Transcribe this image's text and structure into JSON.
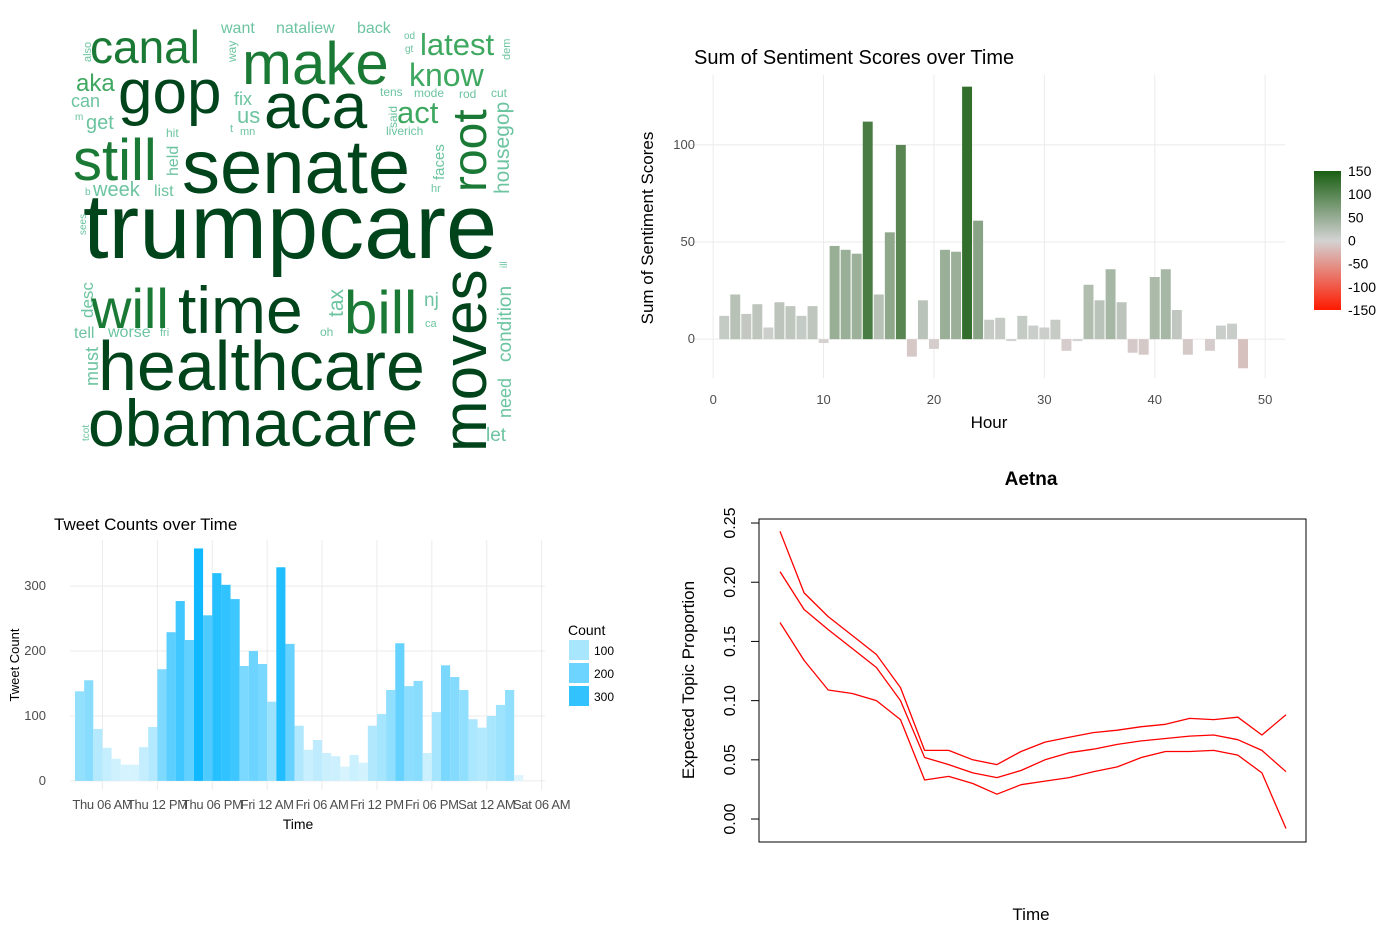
{
  "chart_data": [
    {
      "type": "wordcloud",
      "colors": [
        "#00441b",
        "#1a7a35",
        "#3fa860",
        "#6cc4a0"
      ],
      "words": [
        "trumpcare",
        "senate",
        "healthcare",
        "obamacare",
        "time",
        "make",
        "aca",
        "gop",
        "still",
        "bill",
        "will",
        "moves",
        "root",
        "canal",
        "know",
        "latest",
        "act",
        "aka",
        "housegop",
        "condition",
        "need",
        "us",
        "week",
        "get",
        "tax",
        "desc",
        "must",
        "fix",
        "can",
        "want",
        "nataliew",
        "back",
        "list",
        "tell",
        "worse",
        "let",
        "nj",
        "held",
        "faces",
        "liverich",
        "tens",
        "mode",
        "rod",
        "cut",
        "way",
        "said",
        "hit",
        "oh",
        "ca",
        "fri",
        "hr",
        "dem",
        "also",
        "sees",
        "tcot",
        "ill",
        "od",
        "gt",
        "mn",
        "t",
        "m",
        "b"
      ],
      "values": [
        92,
        76,
        70,
        66,
        66,
        60,
        64,
        62,
        58,
        60,
        56,
        62,
        48,
        46,
        32,
        31,
        31,
        24,
        21,
        19,
        18,
        22,
        20,
        20,
        21,
        17,
        18,
        18,
        18,
        16,
        16,
        16,
        16,
        16,
        16,
        19,
        19,
        16,
        15,
        12,
        12,
        12,
        12,
        12,
        12,
        12,
        12,
        12,
        11,
        11,
        11,
        11,
        11,
        10,
        10,
        10,
        10,
        10,
        11,
        11,
        10,
        10
      ]
    },
    {
      "type": "bar",
      "title": "Sum of Sentiment Scores over Time",
      "xlabel": "Hour",
      "ylabel": "Sum of Sentiment Scores",
      "x": [
        1,
        2,
        3,
        4,
        5,
        6,
        7,
        8,
        9,
        10,
        11,
        12,
        13,
        14,
        15,
        16,
        17,
        18,
        19,
        20,
        21,
        22,
        23,
        24,
        25,
        26,
        27,
        28,
        29,
        30,
        31,
        32,
        33,
        34,
        35,
        36,
        37,
        38,
        39,
        40,
        41,
        42,
        43,
        44,
        45,
        46,
        47,
        48
      ],
      "values": [
        12,
        23,
        13,
        18,
        6,
        19,
        17,
        12,
        17,
        -2,
        48,
        46,
        44,
        112,
        23,
        55,
        100,
        -9,
        20,
        -5,
        46,
        45,
        130,
        61,
        10,
        11,
        -1,
        12,
        7,
        6,
        10,
        -6,
        -1,
        28,
        20,
        36,
        19,
        -7,
        -8,
        32,
        36,
        15,
        -8,
        0,
        -6,
        7,
        8,
        -15
      ],
      "xlim": [
        -2.1,
        51.8
      ],
      "ylim": [
        -20,
        136
      ],
      "xticks": [
        0,
        10,
        20,
        30,
        40,
        50
      ],
      "yticks": [
        0,
        50,
        100
      ],
      "grid": true,
      "color_scale": [
        "#ff1a00",
        "#d3d3d3",
        "#1a5e12"
      ],
      "legend_ticks": [
        150,
        100,
        50,
        0,
        -50,
        -100,
        -150
      ]
    },
    {
      "type": "bar",
      "title": "Tweet Counts over Time",
      "xlabel": "Time",
      "ylabel": "Tweet Count",
      "categories": [
        null,
        null,
        null,
        "Thu 06 AM",
        null,
        null,
        null,
        null,
        null,
        "Thu 12 PM",
        null,
        null,
        null,
        null,
        null,
        "Thu 06 PM",
        null,
        null,
        null,
        null,
        null,
        "Fri 12 AM",
        null,
        null,
        null,
        null,
        null,
        "Fri 06 AM",
        null,
        null,
        null,
        null,
        null,
        "Fri 12 PM",
        null,
        null,
        null,
        null,
        null,
        "Fri 06 PM",
        null,
        null,
        null,
        null,
        null,
        "Sat 12 AM",
        null,
        null,
        null,
        null,
        null,
        "Sat 06 AM"
      ],
      "values": [
        138,
        155,
        80,
        51,
        34,
        25,
        25,
        52,
        83,
        172,
        229,
        277,
        217,
        358,
        255,
        320,
        302,
        280,
        177,
        200,
        180,
        122,
        329,
        211,
        85,
        48,
        63,
        43,
        38,
        22,
        40,
        28,
        85,
        103,
        140,
        212,
        146,
        154,
        43,
        106,
        178,
        160,
        140,
        95,
        82,
        100,
        117,
        140,
        9,
        0,
        0,
        0
      ],
      "ylim": [
        -14,
        371
      ],
      "yticks": [
        0,
        100,
        200,
        300
      ],
      "grid": true,
      "legend_title": "Count",
      "legend_ticks": [
        100,
        200,
        300
      ],
      "color_scale": [
        "#e3f7fe",
        "#10b9ff"
      ]
    },
    {
      "type": "line",
      "title": "Aetna",
      "xlabel": "Time",
      "ylabel": "Expected Topic Proportion",
      "ylim": [
        -0.0194,
        0.2534
      ],
      "yticks": [
        {
          "value": 0,
          "label": "0.00"
        },
        {
          "value": 0.05,
          "label": "0.05"
        },
        {
          "value": 0.1,
          "label": "0.10"
        },
        {
          "value": 0.15,
          "label": "0.15"
        },
        {
          "value": 0.2,
          "label": "0.20"
        },
        {
          "value": 0.25,
          "label": "0.25"
        }
      ],
      "series": [
        {
          "color": "#ff0000",
          "values": [
            0.243,
            0.191,
            0.171,
            0.155,
            0.139,
            0.111,
            0.058,
            0.058,
            0.05,
            0.046,
            0.057,
            0.065,
            0.069,
            0.073,
            0.075,
            0.078,
            0.08,
            0.085,
            0.084,
            0.086,
            0.071,
            0.088
          ]
        },
        {
          "color": "#ff0000",
          "values": [
            0.209,
            0.177,
            0.16,
            0.144,
            0.128,
            0.1,
            0.052,
            0.046,
            0.039,
            0.035,
            0.041,
            0.05,
            0.056,
            0.059,
            0.063,
            0.066,
            0.068,
            0.07,
            0.071,
            0.067,
            0.058,
            0.04
          ]
        },
        {
          "color": "#ff0000",
          "values": [
            0.166,
            0.134,
            0.109,
            0.106,
            0.1,
            0.084,
            0.033,
            0.036,
            0.03,
            0.021,
            0.029,
            0.032,
            0.035,
            0.04,
            0.044,
            0.052,
            0.057,
            0.057,
            0.058,
            0.054,
            0.039,
            -0.008
          ]
        }
      ]
    }
  ]
}
